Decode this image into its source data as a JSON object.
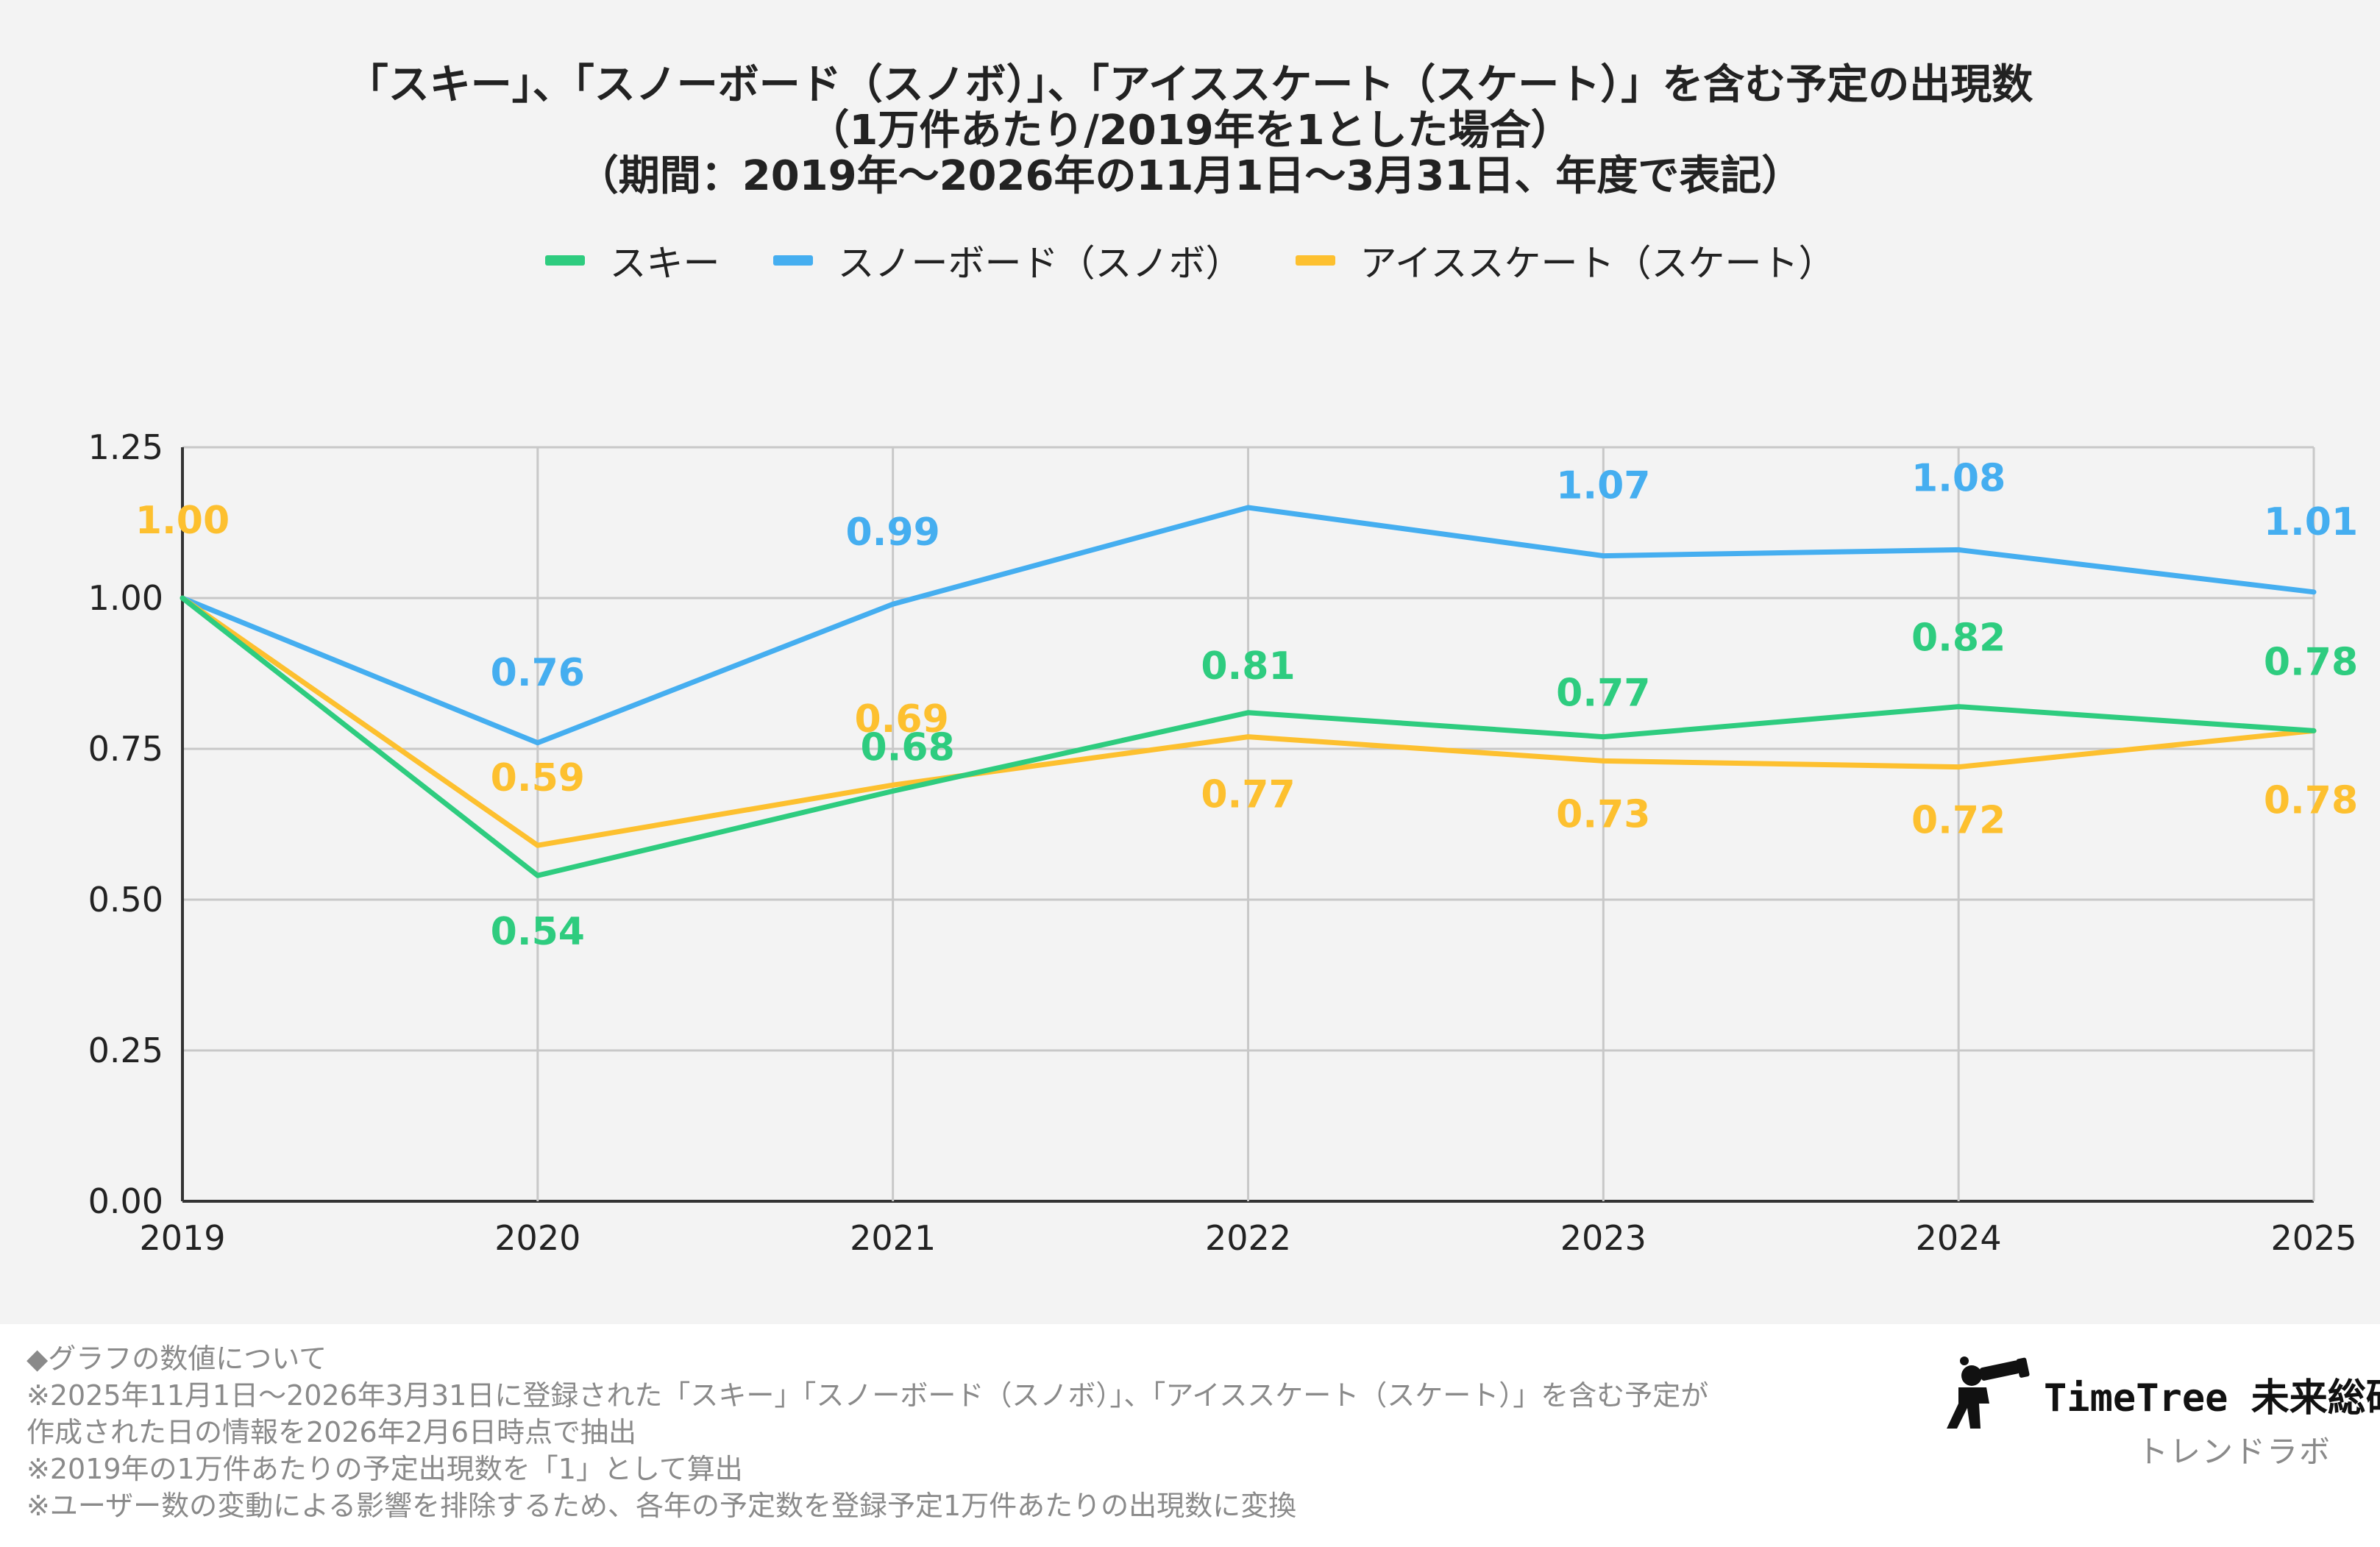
{
  "chart_data": {
    "type": "line",
    "title_lines": [
      "「スキー」、「スノーボード（スノボ）」、「アイススケート（スケート）」を含む予定の出現数",
      "（1万件あたり/2019年を1とした場合）",
      "（期間：2019年〜2026年の11月1日〜3月31日、年度で表記）"
    ],
    "categories": [
      "2019",
      "2020",
      "2021",
      "2022",
      "2023",
      "2024",
      "2025"
    ],
    "series": [
      {
        "name": "スキー",
        "color": "#2ecc7f",
        "values": [
          1.0,
          0.54,
          0.68,
          0.81,
          0.77,
          0.82,
          0.78
        ],
        "labels": [
          "",
          "0.54",
          "0.68",
          "0.81",
          "0.77",
          "0.82",
          "0.78"
        ]
      },
      {
        "name": "スノーボード（スノボ）",
        "color": "#45aef0",
        "values": [
          1.0,
          0.76,
          0.99,
          1.15,
          1.07,
          1.08,
          1.01
        ],
        "labels": [
          "",
          "0.76",
          "0.99",
          "",
          "1.07",
          "1.08",
          "1.01"
        ]
      },
      {
        "name": "アイススケート（スケート）",
        "color": "#fdc02f",
        "values": [
          1.0,
          0.59,
          0.69,
          0.77,
          0.73,
          0.72,
          0.78
        ],
        "labels": [
          "1.00",
          "0.59",
          "0.69",
          "0.77",
          "0.73",
          "0.72",
          "0.78"
        ]
      }
    ],
    "y_ticks": [
      "0.00",
      "0.25",
      "0.50",
      "0.75",
      "1.00",
      "1.25"
    ],
    "ylim": [
      0,
      1.25
    ],
    "xlabel": "",
    "ylabel": "",
    "grid": true,
    "legend_position": "top-center"
  },
  "footnotes": [
    "◆グラフの数値について",
    "※2025年11月1日〜2026年3月31日に登録された「スキー」「スノーボード（スノボ）」、「アイススケート（スケート）」を含む予定が",
    "作成された日の情報を2026年2月6日時点で抽出",
    "※2019年の1万件あたりの予定出現数を「1」として算出",
    "※ユーザー数の変動による影響を排除するため、各年の予定数を登録予定1万件あたりの出現数に変換"
  ],
  "brand": {
    "name": "TimeTree 未来総研",
    "subtitle": "トレンドラボ"
  }
}
